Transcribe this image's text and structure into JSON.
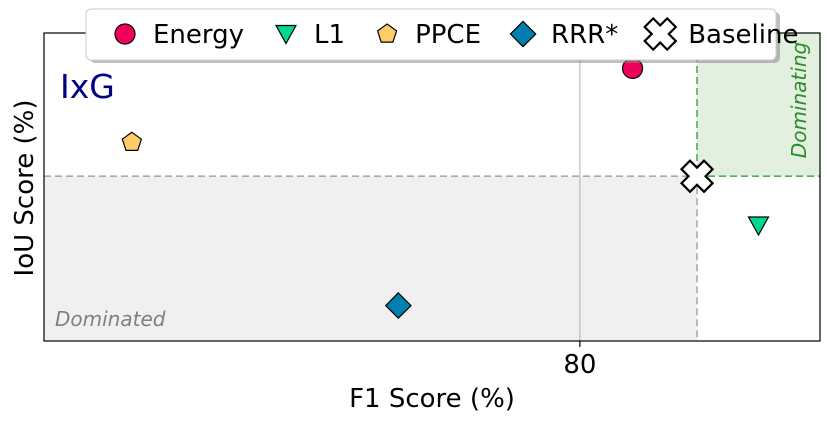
{
  "chart_data": {
    "type": "scatter",
    "panel_label": "IxG",
    "xlabel": "F1 Score (%)",
    "ylabel": "IoU Score (%)",
    "xlim": [
      61.7,
      88.2
    ],
    "ylim": [
      0,
      1
    ],
    "x_ticks": [
      80
    ],
    "x_tick_labels": [
      "80"
    ],
    "grid": "x-major only",
    "legend_position": "top-center",
    "baseline": {
      "name": "Baseline",
      "x": 84.0,
      "y": 0.535
    },
    "region_labels": {
      "dominating": "Dominating",
      "dominated": "Dominated"
    },
    "colors": {
      "panel_label": "#000080",
      "dominating_fill": "#e3f0e0",
      "dominating_line": "#4caf50",
      "dominating_text": "#2e8b2e",
      "dominated_fill": "#f0f0f0",
      "dominated_text": "#808080",
      "baseline_line": "#aaaaaa"
    },
    "series": [
      {
        "name": "Energy",
        "marker": "circle",
        "color": "#f0005c",
        "x": 81.8,
        "y": 0.885
      },
      {
        "name": "L1",
        "marker": "triangle-down",
        "color": "#00d98b",
        "x": 86.1,
        "y": 0.375
      },
      {
        "name": "PPCE",
        "marker": "pentagon",
        "color": "#ffcc66",
        "x": 64.7,
        "y": 0.645
      },
      {
        "name": "RRR*",
        "marker": "diamond",
        "color": "#0080b0",
        "x": 73.8,
        "y": 0.115
      },
      {
        "name": "Baseline",
        "marker": "cross",
        "color": "#ffffff",
        "x": 84.0,
        "y": 0.535
      }
    ]
  }
}
